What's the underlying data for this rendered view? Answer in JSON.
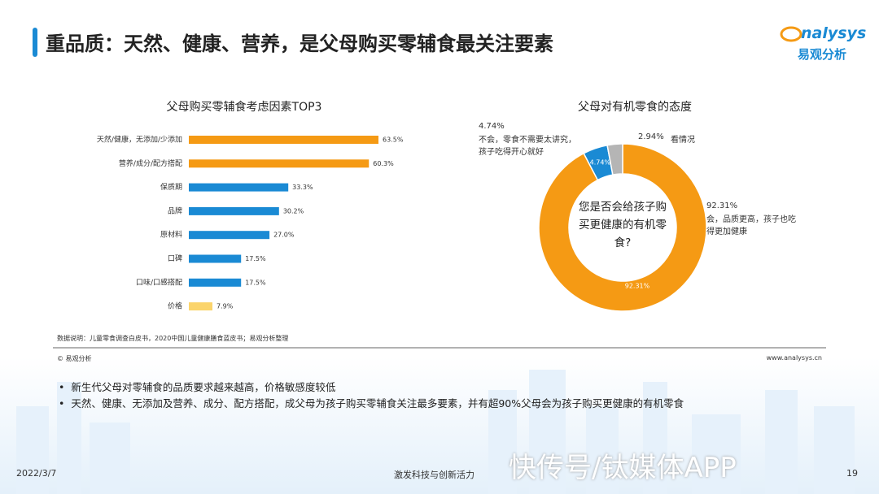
{
  "header": {
    "title": "重品质：天然、健康、营养，是父母购买零辅食最关注要素"
  },
  "logo": {
    "en": "nalysys",
    "cn": "易观分析"
  },
  "chart_data": [
    {
      "type": "bar",
      "orientation": "horizontal",
      "title": "父母购买零辅食考虑因素TOP3",
      "categories": [
        "天然/健康，无添加/少添加",
        "营养/成分/配方搭配",
        "保质期",
        "品牌",
        "原材料",
        "口碑",
        "口味/口感搭配",
        "价格"
      ],
      "values": [
        63.5,
        60.3,
        33.3,
        30.2,
        27.0,
        17.5,
        17.5,
        7.9
      ],
      "value_labels": [
        "63.5%",
        "60.3%",
        "33.3%",
        "30.2%",
        "27.0%",
        "17.5%",
        "17.5%",
        "7.9%"
      ],
      "colors": [
        "#f59a14",
        "#f59a14",
        "#1a8ad4",
        "#1a8ad4",
        "#1a8ad4",
        "#1a8ad4",
        "#1a8ad4",
        "#fbd46b"
      ]
    },
    {
      "type": "donut",
      "title": "父母对有机零食的态度",
      "center_text": "您是否会给孩子购买更健康的有机零食?",
      "categories": [
        "会，品质更高，孩子也吃得更加健康",
        "不会，零食不需要太讲究，孩子吃得开心就好",
        "看情况"
      ],
      "values": [
        92.31,
        4.74,
        2.94
      ],
      "value_labels": [
        "92.31%",
        "4.74%",
        "2.94%"
      ],
      "colors": [
        "#f59a14",
        "#1a8ad4",
        "#b5b5b5"
      ]
    }
  ],
  "source": "数据说明：儿童零食调查白皮书，2020中国儿童健康膳食蓝皮书；易观分析整理",
  "copyright": "© 易观分析",
  "website": "www.analysys.cn",
  "bullets": [
    "新生代父母对零辅食的品质要求越来越高，价格敏感度较低",
    "天然、健康、无添加及营养、成分、配方搭配，成父母为孩子购买零辅食关注最多要素，并有超90%父母会为孩子购买更健康的有机零食"
  ],
  "footer": {
    "date": "2022/3/7",
    "slogan": "激发科技与创新活力",
    "page": "19"
  },
  "watermark": "快传号/钛媒体APP"
}
